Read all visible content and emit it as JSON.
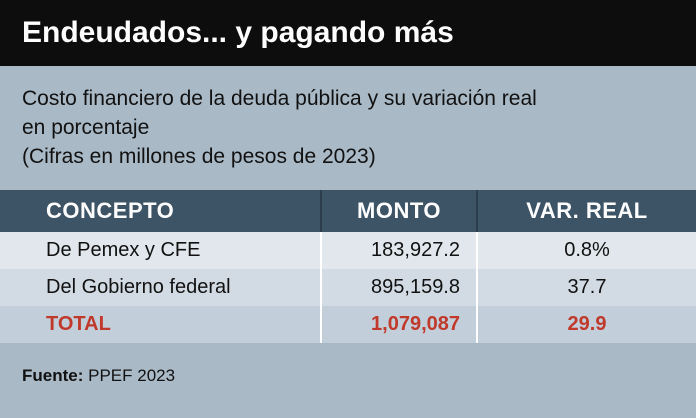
{
  "header": {
    "title": "Endeudados... y pagando más"
  },
  "subtitle": {
    "line1": "Costo financiero de la deuda pública y su variación real",
    "line2": "en porcentaje",
    "line3": "(Cifras en millones de pesos de 2023)"
  },
  "colors": {
    "title_bg": "#0d0d0d",
    "header_bg": "#3d5366",
    "page_bg": "#a9b9c6",
    "total_text": "#c0392b"
  },
  "chart_data": {
    "type": "table",
    "columns": [
      "CONCEPTO",
      "MONTO",
      "VAR. REAL"
    ],
    "rows": [
      [
        "De Pemex y CFE",
        "183,927.2",
        "0.8%"
      ],
      [
        "Del Gobierno federal",
        "895,159.8",
        "37.7"
      ],
      [
        "TOTAL",
        "1,079,087",
        "29.9"
      ]
    ]
  },
  "footer": {
    "source_label": "Fuente:",
    "source_value": "PPEF 2023"
  }
}
